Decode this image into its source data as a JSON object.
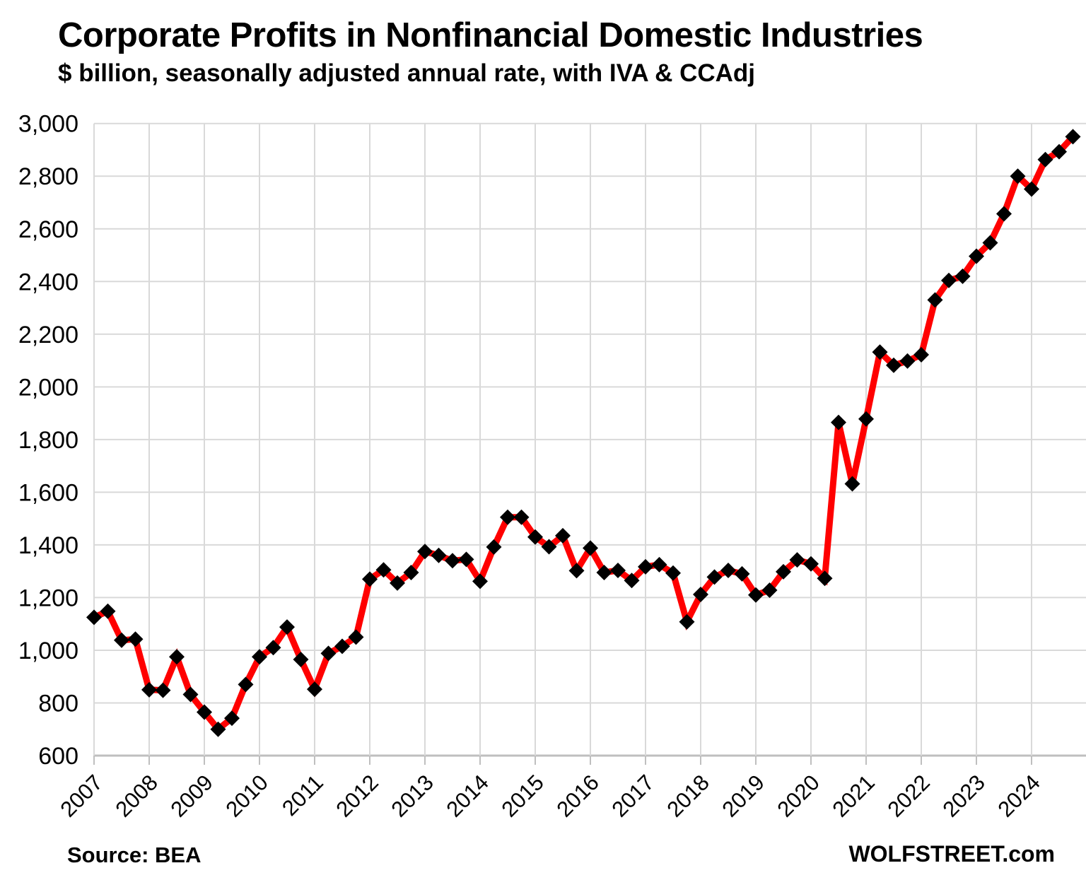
{
  "header": {
    "title": "Corporate Profits in Nonfinancial Domestic Industries",
    "subtitle": "$ billion, seasonally adjusted annual rate, with IVA & CCAdj"
  },
  "footer": {
    "source": "Source: BEA",
    "watermark": "WOLFSTREET.com"
  },
  "chart_data": {
    "type": "line",
    "title": "Corporate Profits in Nonfinancial Domestic Industries",
    "subtitle": "$ billion, seasonally adjusted annual rate, with IVA & CCAdj",
    "xlabel": "",
    "ylabel": "$ billion",
    "ylim": [
      600,
      3000
    ],
    "ytick_step": 200,
    "ytick_labels": [
      "600",
      "800",
      "1,000",
      "1,200",
      "1,400",
      "1,600",
      "1,800",
      "2,000",
      "2,200",
      "2,400",
      "2,600",
      "2,800",
      "3,000"
    ],
    "grid": true,
    "legend": "none",
    "year_labels": [
      "2007",
      "2008",
      "2009",
      "2010",
      "2011",
      "2012",
      "2013",
      "2014",
      "2015",
      "2016",
      "2017",
      "2018",
      "2019",
      "2020",
      "2021",
      "2022",
      "2023",
      "2024"
    ],
    "categories": [
      "2007 Q1",
      "2007 Q2",
      "2007 Q3",
      "2007 Q4",
      "2008 Q1",
      "2008 Q2",
      "2008 Q3",
      "2008 Q4",
      "2009 Q1",
      "2009 Q2",
      "2009 Q3",
      "2009 Q4",
      "2010 Q1",
      "2010 Q2",
      "2010 Q3",
      "2010 Q4",
      "2011 Q1",
      "2011 Q2",
      "2011 Q3",
      "2011 Q4",
      "2012 Q1",
      "2012 Q2",
      "2012 Q3",
      "2012 Q4",
      "2013 Q1",
      "2013 Q2",
      "2013 Q3",
      "2013 Q4",
      "2014 Q1",
      "2014 Q2",
      "2014 Q3",
      "2014 Q4",
      "2015 Q1",
      "2015 Q2",
      "2015 Q3",
      "2015 Q4",
      "2016 Q1",
      "2016 Q2",
      "2016 Q3",
      "2016 Q4",
      "2017 Q1",
      "2017 Q2",
      "2017 Q3",
      "2017 Q4",
      "2018 Q1",
      "2018 Q2",
      "2018 Q3",
      "2018 Q4",
      "2019 Q1",
      "2019 Q2",
      "2019 Q3",
      "2019 Q4",
      "2020 Q1",
      "2020 Q2",
      "2020 Q3",
      "2020 Q4",
      "2021 Q1",
      "2021 Q2",
      "2021 Q3",
      "2021 Q4",
      "2022 Q1",
      "2022 Q2",
      "2022 Q3",
      "2022 Q4",
      "2023 Q1",
      "2023 Q2",
      "2023 Q3",
      "2023 Q4",
      "2024 Q1",
      "2024 Q2",
      "2024 Q3",
      "2024 Q4"
    ],
    "series": [
      {
        "name": "Corporate profits, nonfinancial domestic industries",
        "values": [
          1125,
          1148,
          1038,
          1042,
          850,
          848,
          975,
          832,
          765,
          700,
          742,
          870,
          975,
          1010,
          1088,
          965,
          852,
          988,
          1015,
          1050,
          1270,
          1305,
          1255,
          1295,
          1375,
          1360,
          1340,
          1345,
          1262,
          1392,
          1505,
          1505,
          1430,
          1393,
          1435,
          1302,
          1388,
          1295,
          1303,
          1265,
          1317,
          1325,
          1293,
          1108,
          1212,
          1278,
          1303,
          1290,
          1210,
          1228,
          1298,
          1343,
          1328,
          1273,
          1865,
          1632,
          1878,
          2132,
          2082,
          2098,
          2122,
          2330,
          2404,
          2420,
          2496,
          2547,
          2657,
          2800,
          2751,
          2863,
          2893,
          2950
        ]
      }
    ],
    "colors": {
      "line": "#FF0000",
      "marker": "#000000",
      "grid": "#D9D9D9",
      "axis": "#BFBFBF",
      "text": "#000000",
      "background": "#FFFFFF"
    }
  }
}
